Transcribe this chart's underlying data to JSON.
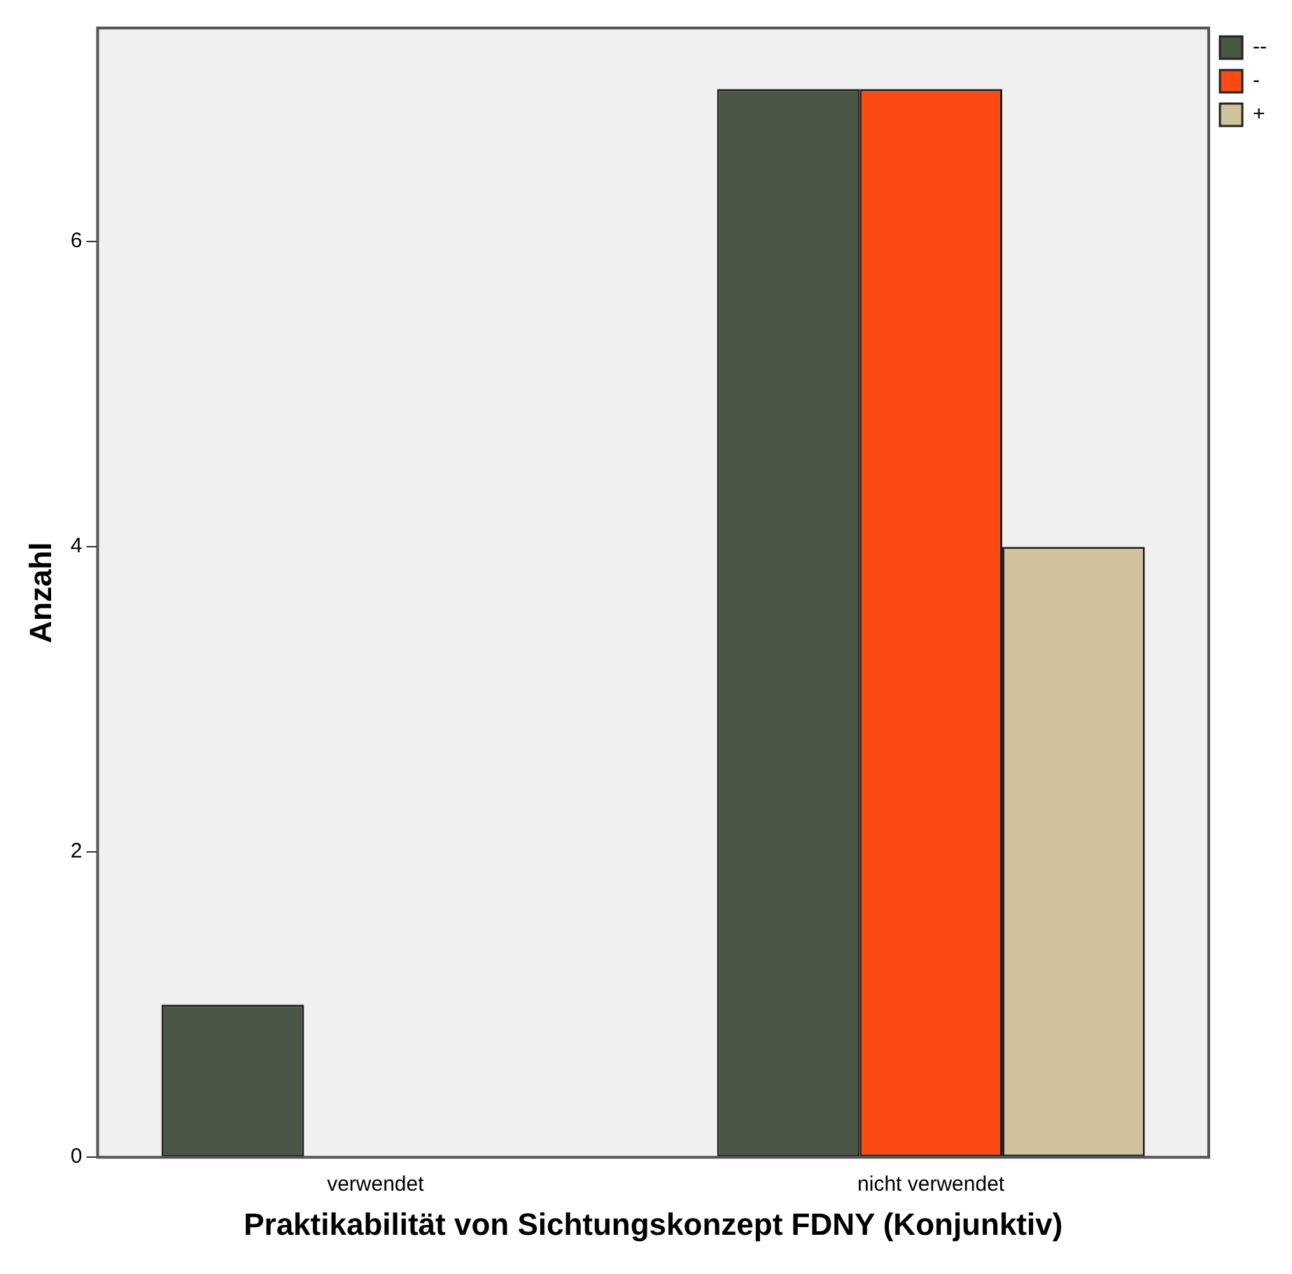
{
  "chart_data": {
    "type": "bar",
    "xlabel": "Praktikabilität von Sichtungskonzept FDNY (Konjunktiv)",
    "ylabel": "Anzahl",
    "categories": [
      "verwendet",
      "nicht verwendet"
    ],
    "series": [
      {
        "name": "--",
        "color": "#4a5646",
        "values": [
          1,
          7
        ]
      },
      {
        "name": "-",
        "color": "#fc4a14",
        "values": [
          0,
          7
        ]
      },
      {
        "name": "+",
        "color": "#d0c29c",
        "values": [
          0,
          4
        ]
      }
    ],
    "ylim": [
      0,
      7.4
    ],
    "yticks": [
      0,
      2,
      4,
      6
    ],
    "grid": false,
    "legend": "right"
  }
}
